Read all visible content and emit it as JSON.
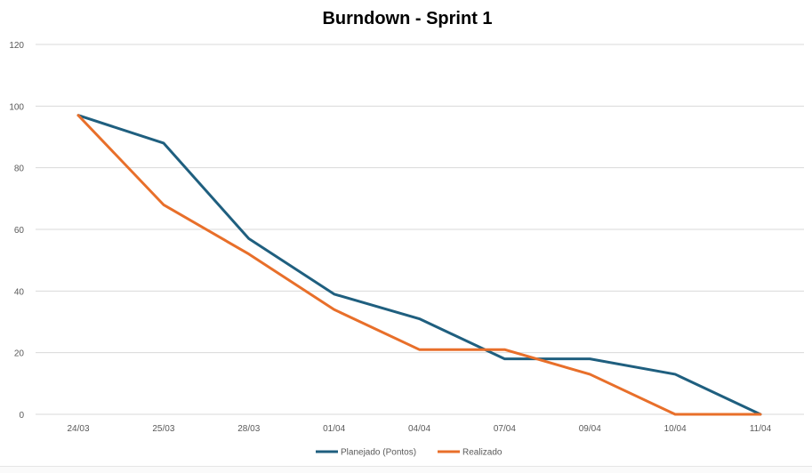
{
  "chart_data": {
    "type": "line",
    "title": "Burndown - Sprint 1",
    "xlabel": "",
    "ylabel": "",
    "categories": [
      "24/03",
      "25/03",
      "28/03",
      "01/04",
      "04/04",
      "07/04",
      "09/04",
      "10/04",
      "11/04"
    ],
    "ylim": [
      0,
      120
    ],
    "yticks": [
      0,
      20,
      40,
      60,
      80,
      100,
      120
    ],
    "ytick_labels": [
      "0",
      "20",
      "40",
      "60",
      "80",
      "100",
      "120"
    ],
    "grid": true,
    "legend_position": "bottom",
    "series": [
      {
        "name": "Planejado (Pontos)",
        "color": "#1f5f7f",
        "values": [
          97,
          88,
          57,
          39,
          31,
          18,
          18,
          13,
          0
        ]
      },
      {
        "name": "Realizado",
        "color": "#e86f2a",
        "values": [
          97,
          68,
          52,
          34,
          21,
          21,
          13,
          0,
          0
        ]
      }
    ]
  }
}
